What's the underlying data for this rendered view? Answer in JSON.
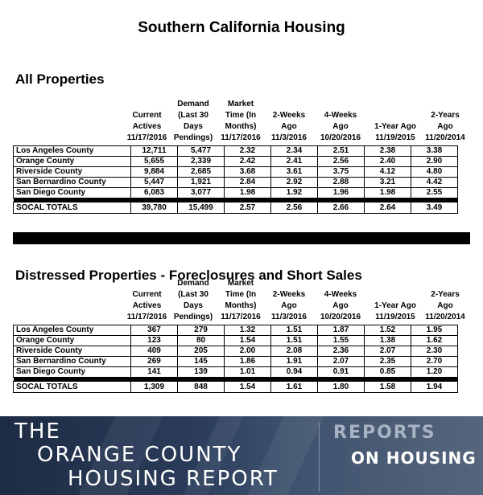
{
  "title": "Southern California Housing",
  "sections": [
    {
      "title": "All Properties",
      "headers": [
        [
          "Current",
          "Actives",
          "11/17/2016"
        ],
        [
          "Demand",
          "(Last 30",
          "Days",
          "Pendings)"
        ],
        [
          "Market",
          "Time (In",
          "Months)",
          "11/17/2016"
        ],
        [
          "2-Weeks",
          "Ago",
          "11/3/2016"
        ],
        [
          "4-Weeks",
          "Ago",
          "10/20/2016"
        ],
        [
          "1-Year Ago",
          "11/19/2015"
        ],
        [
          "2-Years",
          "Ago",
          "11/20/2014"
        ]
      ],
      "rows": [
        {
          "name": "Los Angeles County",
          "values": [
            "12,711",
            "5,477",
            "2.32",
            "2.34",
            "2.51",
            "2.38",
            "3.38"
          ]
        },
        {
          "name": "Orange County",
          "values": [
            "5,655",
            "2,339",
            "2.42",
            "2.41",
            "2.56",
            "2.40",
            "2.90"
          ]
        },
        {
          "name": "Riverside County",
          "values": [
            "9,884",
            "2,685",
            "3.68",
            "3.61",
            "3.75",
            "4.12",
            "4.80"
          ]
        },
        {
          "name": "San Bernardino County",
          "values": [
            "5,447",
            "1,921",
            "2.84",
            "2.92",
            "2.88",
            "3.21",
            "4.42"
          ]
        },
        {
          "name": "San Diego County",
          "values": [
            "6,083",
            "3,077",
            "1.98",
            "1.92",
            "1.96",
            "1.98",
            "2.55"
          ]
        }
      ],
      "total": {
        "name": "SOCAL TOTALS",
        "values": [
          "39,780",
          "15,499",
          "2.57",
          "2.56",
          "2.66",
          "2.64",
          "3.49"
        ]
      }
    },
    {
      "title": "Distressed Properties - Foreclosures and Short Sales",
      "headers": [
        [
          "Current",
          "Actives",
          "11/17/2016"
        ],
        [
          "Demand",
          "(Last 30",
          "Days",
          "Pendings)"
        ],
        [
          "Market",
          "Time (In",
          "Months)",
          "11/17/2016"
        ],
        [
          "2-Weeks",
          "Ago",
          "11/3/2016"
        ],
        [
          "4-Weeks",
          "Ago",
          "10/20/2016"
        ],
        [
          "1-Year Ago",
          "11/19/2015"
        ],
        [
          "2-Years",
          "Ago",
          "11/20/2014"
        ]
      ],
      "rows": [
        {
          "name": "Los Angeles County",
          "values": [
            "367",
            "279",
            "1.32",
            "1.51",
            "1.87",
            "1.52",
            "1.95"
          ]
        },
        {
          "name": "Orange County",
          "values": [
            "123",
            "80",
            "1.54",
            "1.51",
            "1.55",
            "1.38",
            "1.62"
          ]
        },
        {
          "name": "Riverside County",
          "values": [
            "409",
            "205",
            "2.00",
            "2.08",
            "2.36",
            "2.07",
            "2.30"
          ]
        },
        {
          "name": "San Bernardino County",
          "values": [
            "269",
            "145",
            "1.86",
            "1.91",
            "2.07",
            "2.35",
            "2.70"
          ]
        },
        {
          "name": "San Diego County",
          "values": [
            "141",
            "139",
            "1.01",
            "0.94",
            "0.91",
            "0.85",
            "1.20"
          ]
        }
      ],
      "total": {
        "name": "SOCAL TOTALS",
        "values": [
          "1,309",
          "848",
          "1.54",
          "1.61",
          "1.80",
          "1.58",
          "1.94"
        ]
      }
    }
  ],
  "banner": {
    "line1": "THE",
    "line2": "ORANGE COUNTY",
    "line3": "HOUSING REPORT",
    "right1": "REPORTS",
    "right2": "ON HOUSING"
  }
}
